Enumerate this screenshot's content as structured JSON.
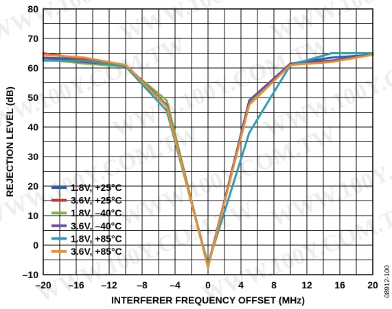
{
  "chart_data": {
    "type": "line",
    "title": "",
    "xlabel": "INTERFERER FREQUENCY OFFSET (MHz)",
    "ylabel": "REJECTION LEVEL (dB)",
    "xlim": [
      -20,
      20
    ],
    "ylim": [
      -10,
      80
    ],
    "x_ticks": [
      "–20",
      "–16",
      "–12",
      "–8",
      "–4",
      "0",
      "4",
      "8",
      "12",
      "16",
      "20"
    ],
    "y_ticks": [
      "–10",
      "0",
      "10",
      "20",
      "30",
      "40",
      "50",
      "60",
      "70",
      "80"
    ],
    "grid": true,
    "legend_position": "bottom-left",
    "series": [
      {
        "name": "1.8V, +25°C",
        "color": "#2b5ea8",
        "x": [
          -20,
          -15,
          -10,
          -5,
          0,
          5,
          10,
          15,
          20
        ],
        "y": [
          63.5,
          63,
          61,
          47,
          -7,
          48,
          61.5,
          63.5,
          64.5
        ]
      },
      {
        "name": "3.6V, +25°C",
        "color": "#c0392b",
        "x": [
          -20,
          -15,
          -10,
          -5,
          0,
          5,
          10,
          15,
          20
        ],
        "y": [
          65,
          63,
          61,
          47,
          -7,
          48,
          61.5,
          62.5,
          64.5
        ]
      },
      {
        "name": "1.8V, –40°C",
        "color": "#7cb342",
        "x": [
          -20,
          -15,
          -10,
          -5,
          0,
          5,
          10,
          15,
          20
        ],
        "y": [
          63,
          61.5,
          60.5,
          49,
          -7.5,
          48.5,
          61.5,
          62.5,
          64.5
        ]
      },
      {
        "name": "3.6V, –40°C",
        "color": "#6a4c9c",
        "x": [
          -20,
          -15,
          -10,
          -5,
          0,
          5,
          10,
          15,
          20
        ],
        "y": [
          63.5,
          62,
          61,
          47.5,
          -7.5,
          49,
          61.5,
          62.5,
          64.5
        ]
      },
      {
        "name": "1.8V, +85°C",
        "color": "#2f9bb5",
        "x": [
          -20,
          -15,
          -10,
          -5,
          0,
          5,
          10,
          15,
          20
        ],
        "y": [
          62.5,
          62.5,
          60.5,
          45.5,
          -6.5,
          38,
          61,
          65,
          65
        ]
      },
      {
        "name": "3.6V, +85°C",
        "color": "#e8902f",
        "x": [
          -20,
          -15,
          -10,
          -5,
          0,
          5,
          10,
          15,
          20
        ],
        "y": [
          64.5,
          63.5,
          61,
          47,
          -7.5,
          47.5,
          61,
          62,
          64.5
        ]
      }
    ]
  },
  "figure_id": "08912-100",
  "watermark": "WWW.100Y.COM.TW"
}
